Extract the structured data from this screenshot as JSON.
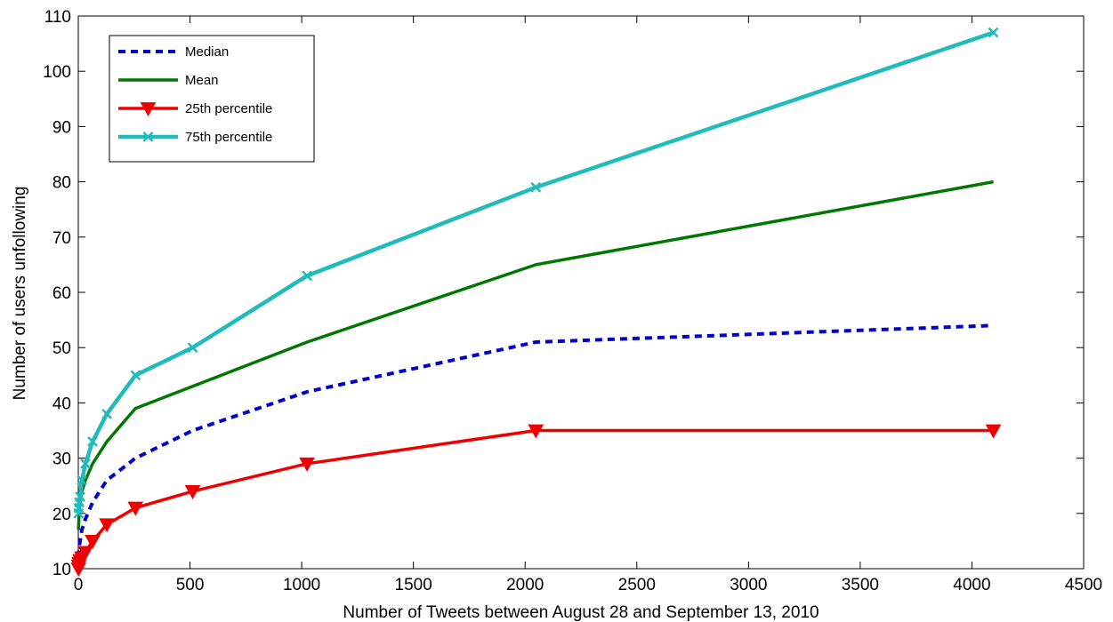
{
  "chart_data": {
    "type": "line",
    "xlabel": "Number of Tweets between August 28 and September 13, 2010",
    "ylabel": "Number of users unfollowing",
    "xlim": [
      0,
      4500
    ],
    "ylim": [
      10,
      110
    ],
    "xticks": [
      0,
      500,
      1000,
      1500,
      2000,
      2500,
      3000,
      3500,
      4000,
      4500
    ],
    "yticks": [
      10,
      20,
      30,
      40,
      50,
      60,
      70,
      80,
      90,
      100,
      110
    ],
    "grid": false,
    "legend_position": "top-left",
    "series": [
      {
        "name": "Median",
        "color": "#0000cc",
        "style": "dashed",
        "marker": "none",
        "x": [
          1,
          2,
          4,
          8,
          16,
          32,
          64,
          128,
          256,
          512,
          1024,
          2048,
          4096
        ],
        "y": [
          12,
          13,
          14,
          15,
          17,
          19,
          22,
          26,
          30,
          35,
          42,
          51,
          54
        ]
      },
      {
        "name": "Mean",
        "color": "#007700",
        "style": "solid",
        "marker": "none",
        "x": [
          1,
          2,
          4,
          8,
          16,
          32,
          64,
          128,
          256,
          512,
          1024,
          2048,
          4096
        ],
        "y": [
          17,
          18.5,
          20,
          22,
          24,
          26,
          29,
          33,
          39,
          43,
          51,
          65,
          80
        ]
      },
      {
        "name": "25th percentile",
        "color": "#ee0000",
        "style": "solid",
        "marker": "triangle-down",
        "x": [
          1,
          2,
          4,
          8,
          16,
          32,
          64,
          128,
          256,
          512,
          1024,
          2048,
          4096
        ],
        "y": [
          10,
          10.5,
          11,
          11.5,
          12,
          13,
          15,
          18,
          21,
          24,
          29,
          35,
          35
        ]
      },
      {
        "name": "75th percentile",
        "color": "#22bbbb",
        "style": "solid",
        "marker": "x",
        "x": [
          1,
          2,
          4,
          8,
          16,
          32,
          64,
          128,
          256,
          512,
          1024,
          2048,
          4096
        ],
        "y": [
          20,
          21,
          22,
          23,
          26,
          29,
          33,
          38,
          45,
          50,
          63,
          79,
          107
        ]
      }
    ]
  }
}
